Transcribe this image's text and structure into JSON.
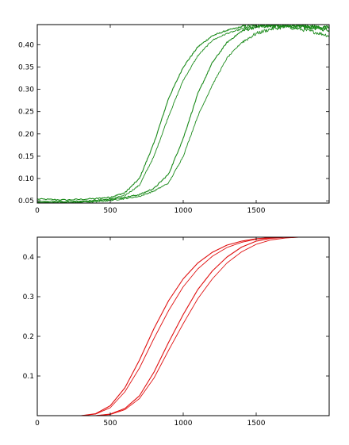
{
  "chart_data": [
    {
      "type": "line",
      "title": "",
      "xlabel": "",
      "ylabel": "",
      "xlim": [
        0,
        2000
      ],
      "ylim": [
        0.045,
        0.445
      ],
      "xticks": [
        0,
        500,
        1000,
        1500
      ],
      "yticks": [
        0.05,
        0.1,
        0.15,
        0.2,
        0.25,
        0.3,
        0.35,
        0.4
      ],
      "xtick_labels": [
        "0",
        "500",
        "1000",
        "1500"
      ],
      "ytick_labels": [
        "0.05",
        "0.10",
        "0.15",
        "0.20",
        "0.25",
        "0.30",
        "0.35",
        "0.40"
      ],
      "grid": false,
      "legend": "none",
      "color": "#1a8a1a",
      "noisy": true,
      "series": [
        {
          "values": [
            [
              0,
              0.054
            ],
            [
              200,
              0.052
            ],
            [
              400,
              0.055
            ],
            [
              500,
              0.058
            ],
            [
              600,
              0.068
            ],
            [
              700,
              0.1
            ],
            [
              800,
              0.18
            ],
            [
              900,
              0.28
            ],
            [
              1000,
              0.35
            ],
            [
              1100,
              0.395
            ],
            [
              1200,
              0.42
            ],
            [
              1300,
              0.432
            ],
            [
              1400,
              0.44
            ],
            [
              1500,
              0.443
            ],
            [
              1600,
              0.443
            ],
            [
              1700,
              0.442
            ],
            [
              1800,
              0.44
            ],
            [
              1900,
              0.437
            ],
            [
              2000,
              0.433
            ]
          ]
        },
        {
          "values": [
            [
              0,
              0.05
            ],
            [
              200,
              0.049
            ],
            [
              400,
              0.051
            ],
            [
              500,
              0.054
            ],
            [
              600,
              0.062
            ],
            [
              700,
              0.085
            ],
            [
              800,
              0.15
            ],
            [
              900,
              0.24
            ],
            [
              1000,
              0.32
            ],
            [
              1100,
              0.375
            ],
            [
              1200,
              0.41
            ],
            [
              1300,
              0.425
            ],
            [
              1400,
              0.435
            ],
            [
              1500,
              0.44
            ],
            [
              1600,
              0.442
            ],
            [
              1700,
              0.44
            ],
            [
              1800,
              0.435
            ],
            [
              1900,
              0.428
            ],
            [
              2000,
              0.42
            ]
          ]
        },
        {
          "values": [
            [
              0,
              0.047
            ],
            [
              200,
              0.047
            ],
            [
              400,
              0.05
            ],
            [
              500,
              0.053
            ],
            [
              600,
              0.058
            ],
            [
              700,
              0.064
            ],
            [
              800,
              0.078
            ],
            [
              900,
              0.11
            ],
            [
              1000,
              0.19
            ],
            [
              1100,
              0.29
            ],
            [
              1200,
              0.36
            ],
            [
              1300,
              0.405
            ],
            [
              1400,
              0.43
            ],
            [
              1500,
              0.441
            ],
            [
              1600,
              0.443
            ],
            [
              1700,
              0.443
            ],
            [
              1800,
              0.442
            ],
            [
              1900,
              0.44
            ],
            [
              2000,
              0.438
            ]
          ]
        },
        {
          "values": [
            [
              0,
              0.046
            ],
            [
              200,
              0.046
            ],
            [
              400,
              0.048
            ],
            [
              500,
              0.051
            ],
            [
              600,
              0.055
            ],
            [
              700,
              0.06
            ],
            [
              800,
              0.072
            ],
            [
              900,
              0.09
            ],
            [
              1000,
              0.15
            ],
            [
              1100,
              0.24
            ],
            [
              1200,
              0.31
            ],
            [
              1300,
              0.37
            ],
            [
              1400,
              0.405
            ],
            [
              1500,
              0.425
            ],
            [
              1600,
              0.435
            ],
            [
              1700,
              0.44
            ],
            [
              1800,
              0.441
            ],
            [
              1900,
              0.44
            ],
            [
              2000,
              0.438
            ]
          ]
        }
      ]
    },
    {
      "type": "line",
      "title": "",
      "xlabel": "",
      "ylabel": "",
      "xlim": [
        0,
        2000
      ],
      "ylim": [
        0.0,
        0.45
      ],
      "xticks": [
        0,
        500,
        1000,
        1500
      ],
      "yticks": [
        0.1,
        0.2,
        0.3,
        0.4
      ],
      "xtick_labels": [
        "0",
        "500",
        "1000",
        "1500"
      ],
      "ytick_labels": [
        "0.1",
        "0.2",
        "0.3",
        "0.4"
      ],
      "grid": false,
      "legend": "none",
      "color": "#e01010",
      "noisy": false,
      "series": [
        {
          "values": [
            [
              0,
              0.0
            ],
            [
              300,
              0.0
            ],
            [
              400,
              0.005
            ],
            [
              500,
              0.025
            ],
            [
              600,
              0.07
            ],
            [
              700,
              0.14
            ],
            [
              800,
              0.22
            ],
            [
              900,
              0.29
            ],
            [
              1000,
              0.345
            ],
            [
              1100,
              0.385
            ],
            [
              1200,
              0.412
            ],
            [
              1300,
              0.43
            ],
            [
              1400,
              0.44
            ],
            [
              1500,
              0.446
            ],
            [
              1600,
              0.449
            ],
            [
              1700,
              0.45
            ],
            [
              2000,
              0.45
            ]
          ]
        },
        {
          "values": [
            [
              0,
              0.0
            ],
            [
              300,
              0.0
            ],
            [
              400,
              0.004
            ],
            [
              500,
              0.02
            ],
            [
              600,
              0.06
            ],
            [
              700,
              0.12
            ],
            [
              800,
              0.195
            ],
            [
              900,
              0.265
            ],
            [
              1000,
              0.325
            ],
            [
              1100,
              0.37
            ],
            [
              1200,
              0.402
            ],
            [
              1300,
              0.424
            ],
            [
              1400,
              0.437
            ],
            [
              1500,
              0.445
            ],
            [
              1600,
              0.448
            ],
            [
              1700,
              0.45
            ],
            [
              2000,
              0.45
            ]
          ]
        },
        {
          "values": [
            [
              0,
              0.0
            ],
            [
              400,
              0.0
            ],
            [
              500,
              0.004
            ],
            [
              600,
              0.018
            ],
            [
              700,
              0.05
            ],
            [
              800,
              0.11
            ],
            [
              900,
              0.185
            ],
            [
              1000,
              0.255
            ],
            [
              1100,
              0.318
            ],
            [
              1200,
              0.365
            ],
            [
              1300,
              0.4
            ],
            [
              1400,
              0.425
            ],
            [
              1500,
              0.44
            ],
            [
              1600,
              0.447
            ],
            [
              1700,
              0.45
            ],
            [
              2000,
              0.45
            ]
          ]
        },
        {
          "values": [
            [
              0,
              0.0
            ],
            [
              400,
              0.0
            ],
            [
              500,
              0.003
            ],
            [
              600,
              0.015
            ],
            [
              700,
              0.043
            ],
            [
              800,
              0.095
            ],
            [
              900,
              0.165
            ],
            [
              1000,
              0.232
            ],
            [
              1100,
              0.295
            ],
            [
              1200,
              0.345
            ],
            [
              1300,
              0.385
            ],
            [
              1400,
              0.413
            ],
            [
              1500,
              0.432
            ],
            [
              1600,
              0.443
            ],
            [
              1700,
              0.448
            ],
            [
              1800,
              0.45
            ],
            [
              2000,
              0.45
            ]
          ]
        }
      ]
    }
  ]
}
